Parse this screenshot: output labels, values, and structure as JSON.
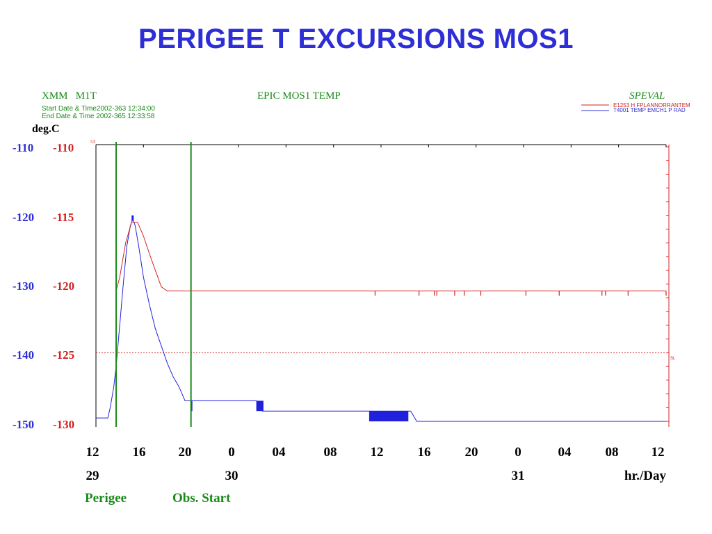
{
  "slide_title": "PERIGEE T EXCURSIONS MOS1",
  "plot_header": {
    "left_title": "XMM   M1T",
    "center_title": "EPIC MOS1 TEMP",
    "right_title": "SPEVAL",
    "start_line": "Start Date & Time2002-363 12:34:00",
    "end_line": "End Date & Time 2002-365 12:33:58",
    "legend": [
      {
        "label": "E1253 H FPLANNORRANTEM",
        "color": "#d42020"
      },
      {
        "label": "T4001 TEMP EMCH1 P RAD",
        "color": "#3030d0"
      }
    ],
    "small_top": "53",
    "small_right": "SL"
  },
  "colors": {
    "title": "#2e2ed6",
    "blue": "#2e2ed6",
    "red": "#d42020",
    "green": "#1a8a1a",
    "plot_blue": "#2020dd",
    "plot_red": "#d42020"
  },
  "chart_data": {
    "type": "line",
    "unit_label": "deg.C",
    "xlabel": "hr./Day",
    "x_ticks": [
      "12",
      "16",
      "20",
      "0",
      "04",
      "08",
      "12",
      "16",
      "20",
      "0",
      "04",
      "08",
      "12"
    ],
    "day_labels": [
      {
        "tick_index": 0,
        "label": "29"
      },
      {
        "tick_index": 3,
        "label": "30"
      },
      {
        "tick_index": 9,
        "label": "31"
      }
    ],
    "x_range_hours": [
      0,
      48
    ],
    "y_left_blue": {
      "range": [
        -150,
        -110
      ],
      "ticks": [
        "-110",
        "-120",
        "-130",
        "-140",
        "-150"
      ]
    },
    "y_left_red": {
      "range": [
        -130,
        -110
      ],
      "ticks": [
        "-110",
        "-115",
        "-120",
        "-125",
        "-130"
      ]
    },
    "markers": [
      {
        "label": "Perigee",
        "x_hours": 1.7
      },
      {
        "label": "Obs. Start",
        "x_hours": 8.0
      }
    ],
    "series": [
      {
        "name": "T4001 TEMP EMCH1 P RAD",
        "axis": "blue",
        "points": [
          [
            0,
            -149.5
          ],
          [
            1.0,
            -149.5
          ],
          [
            1.2,
            -148
          ],
          [
            1.5,
            -145
          ],
          [
            1.7,
            -142
          ],
          [
            2.0,
            -136
          ],
          [
            2.3,
            -130
          ],
          [
            2.6,
            -124.5
          ],
          [
            2.9,
            -121.5
          ],
          [
            3.1,
            -120.5
          ],
          [
            3.3,
            -121.5
          ],
          [
            3.6,
            -124.5
          ],
          [
            4.0,
            -129
          ],
          [
            4.5,
            -133
          ],
          [
            5.0,
            -136.5
          ],
          [
            5.5,
            -139
          ],
          [
            6.0,
            -141.5
          ],
          [
            6.5,
            -143.5
          ],
          [
            7.0,
            -145
          ],
          [
            7.5,
            -147
          ],
          [
            8.0,
            -147
          ],
          [
            10.0,
            -147
          ],
          [
            13.5,
            -147
          ],
          [
            14.0,
            -148.5
          ],
          [
            23.0,
            -148.5
          ],
          [
            26.5,
            -148.5
          ],
          [
            27.0,
            -150
          ],
          [
            48.0,
            -150
          ]
        ]
      },
      {
        "name": "E1253 H FPLANNORRANTEM",
        "axis": "red",
        "points": [
          [
            1.7,
            -120.5
          ],
          [
            2.0,
            -119.5
          ],
          [
            2.5,
            -117
          ],
          [
            3.0,
            -115.5
          ],
          [
            3.5,
            -115.5
          ],
          [
            4.0,
            -116.5
          ],
          [
            4.5,
            -117.8
          ],
          [
            5.0,
            -119
          ],
          [
            5.5,
            -120.2
          ],
          [
            6.0,
            -120.5
          ],
          [
            7.0,
            -120.5
          ],
          [
            48.0,
            -120.5
          ]
        ],
        "dips_hours": [
          23.5,
          27.2,
          28.5,
          28.7,
          30.2,
          31.0,
          32.4,
          36.2,
          39.0,
          42.6,
          42.9,
          44.8,
          48.0
        ]
      }
    ],
    "reference_line": {
      "axis": "red",
      "value": -125,
      "style": "dotted"
    }
  }
}
